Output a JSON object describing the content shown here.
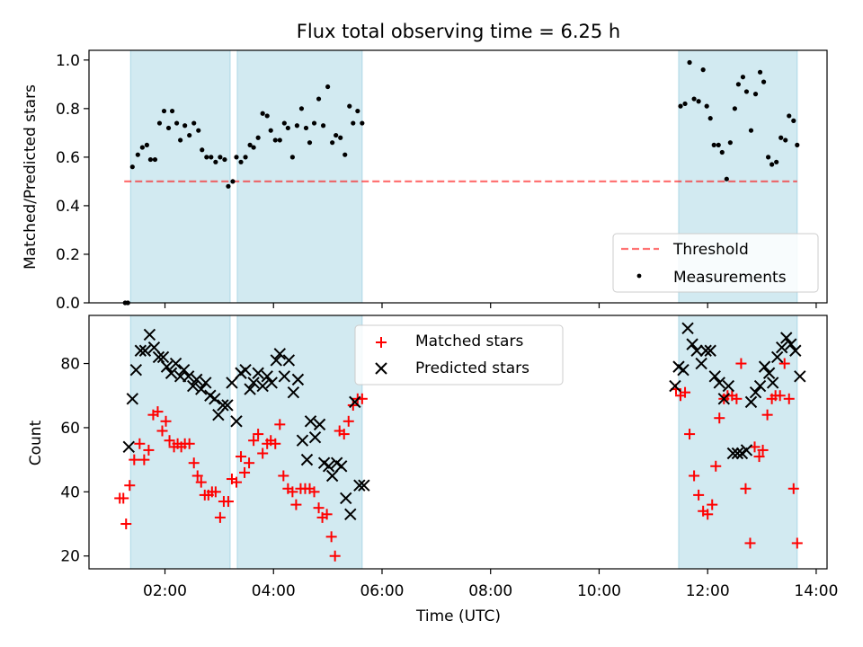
{
  "title": "Flux total observing time = 6.25 h",
  "colors": {
    "band": "#add8e6",
    "threshold": "#ff0000",
    "measurement": "#000000",
    "matched": "#ff0000",
    "predicted": "#000000"
  },
  "chart_data": [
    {
      "type": "scatter",
      "panel": "top",
      "title": "Flux total observing time = 6.25 h",
      "xlabel": "",
      "ylabel": "Matched/Predicted stars",
      "xlim": [
        "00:36",
        "14:12"
      ],
      "ylim": [
        0,
        1.04
      ],
      "x_ticks": [
        "02:00",
        "04:00",
        "06:00",
        "08:00",
        "10:00",
        "12:00",
        "14:00"
      ],
      "y_ticks": [
        "0.0",
        "0.2",
        "0.4",
        "0.6",
        "0.8",
        "1.0"
      ],
      "legend_position": "lower right",
      "bands": [
        [
          "01:22",
          "03:12"
        ],
        [
          "03:20",
          "05:38"
        ],
        [
          "11:28",
          "13:39"
        ]
      ],
      "threshold": {
        "name": "Threshold",
        "value": 0.5,
        "x_range": [
          "01:15",
          "13:39"
        ]
      },
      "series": [
        {
          "name": "Measurements",
          "x": [
            "01:16",
            "01:19",
            "01:24",
            "01:30",
            "01:35",
            "01:40",
            "01:44",
            "01:49",
            "01:54",
            "01:59",
            "02:04",
            "02:08",
            "02:13",
            "02:17",
            "02:22",
            "02:27",
            "02:32",
            "02:37",
            "02:41",
            "02:46",
            "02:51",
            "02:56",
            "03:01",
            "03:06",
            "03:10",
            "03:15",
            "03:19",
            "03:24",
            "03:29",
            "03:34",
            "03:38",
            "03:43",
            "03:48",
            "03:53",
            "03:57",
            "04:02",
            "04:07",
            "04:12",
            "04:16",
            "04:21",
            "04:26",
            "04:31",
            "04:36",
            "04:40",
            "04:45",
            "04:50",
            "04:55",
            "05:00",
            "05:05",
            "05:09",
            "05:14",
            "05:19",
            "05:24",
            "05:28",
            "05:33",
            "05:38",
            "11:30",
            "11:35",
            "11:40",
            "11:45",
            "11:50",
            "11:55",
            "11:59",
            "12:03",
            "12:07",
            "12:12",
            "12:16",
            "12:21",
            "12:25",
            "12:30",
            "12:34",
            "12:39",
            "12:43",
            "12:48",
            "12:53",
            "12:58",
            "13:02",
            "13:07",
            "13:11",
            "13:16",
            "13:21",
            "13:26",
            "13:30",
            "13:35",
            "13:39"
          ],
          "y": [
            0.0,
            0.0,
            0.56,
            0.61,
            0.64,
            0.65,
            0.59,
            0.59,
            0.74,
            0.79,
            0.72,
            0.79,
            0.74,
            0.67,
            0.73,
            0.69,
            0.74,
            0.71,
            0.63,
            0.6,
            0.6,
            0.58,
            0.6,
            0.59,
            0.48,
            0.5,
            0.6,
            0.58,
            0.6,
            0.65,
            0.64,
            0.68,
            0.78,
            0.77,
            0.71,
            0.67,
            0.67,
            0.74,
            0.72,
            0.6,
            0.73,
            0.8,
            0.72,
            0.66,
            0.74,
            0.84,
            0.73,
            0.89,
            0.66,
            0.69,
            0.68,
            0.61,
            0.81,
            0.74,
            0.79,
            0.74,
            0.81,
            0.82,
            0.99,
            0.84,
            0.83,
            0.96,
            0.81,
            0.76,
            0.65,
            0.65,
            0.62,
            0.51,
            0.66,
            0.8,
            0.9,
            0.93,
            0.87,
            0.71,
            0.86,
            0.95,
            0.91,
            0.6,
            0.57,
            0.58,
            0.68,
            0.67,
            0.77,
            0.75,
            0.65
          ]
        }
      ]
    },
    {
      "type": "scatter",
      "panel": "bottom",
      "xlabel": "Time (UTC)",
      "ylabel": "Count",
      "xlim": [
        "00:36",
        "14:12"
      ],
      "ylim": [
        16,
        95
      ],
      "x_ticks": [
        "02:00",
        "04:00",
        "06:00",
        "08:00",
        "10:00",
        "12:00",
        "14:00"
      ],
      "y_ticks": [
        "20",
        "40",
        "60",
        "80"
      ],
      "legend_position": "upper center",
      "bands": [
        [
          "01:22",
          "03:12"
        ],
        [
          "03:20",
          "05:38"
        ],
        [
          "11:28",
          "13:39"
        ]
      ],
      "series": [
        {
          "name": "Matched stars",
          "marker": "plus",
          "x": [
            "01:10",
            "01:14",
            "01:17",
            "01:21",
            "01:26",
            "01:32",
            "01:37",
            "01:42",
            "01:47",
            "01:52",
            "01:57",
            "02:01",
            "02:05",
            "02:10",
            "02:14",
            "02:18",
            "02:22",
            "02:27",
            "02:32",
            "02:36",
            "02:40",
            "02:44",
            "02:48",
            "02:52",
            "02:56",
            "03:01",
            "03:05",
            "03:10",
            "03:14",
            "03:19",
            "03:24",
            "03:28",
            "03:33",
            "03:38",
            "03:43",
            "03:48",
            "03:53",
            "03:57",
            "04:02",
            "04:07",
            "04:11",
            "04:16",
            "04:21",
            "04:25",
            "04:30",
            "04:35",
            "04:40",
            "04:45",
            "04:50",
            "04:54",
            "04:59",
            "05:04",
            "05:08",
            "05:13",
            "05:18",
            "05:23",
            "05:28",
            "05:33",
            "05:38",
            "11:25",
            "11:30",
            "11:35",
            "11:40",
            "11:45",
            "11:50",
            "11:55",
            "12:00",
            "12:05",
            "12:09",
            "12:13",
            "12:18",
            "12:22",
            "12:27",
            "12:32",
            "12:37",
            "12:42",
            "12:47",
            "12:52",
            "12:57",
            "13:01",
            "13:06",
            "13:11",
            "13:15",
            "13:20",
            "13:25",
            "13:30",
            "13:35",
            "13:39"
          ],
          "y": [
            38,
            38,
            30,
            42,
            50,
            55,
            50,
            53,
            64,
            65,
            59,
            62,
            56,
            54,
            55,
            54,
            55,
            55,
            49,
            45,
            43,
            39,
            39,
            40,
            40,
            32,
            37,
            37,
            44,
            43,
            51,
            46,
            49,
            56,
            58,
            52,
            55,
            56,
            55,
            61,
            45,
            41,
            40,
            36,
            41,
            41,
            41,
            40,
            35,
            32,
            33,
            26,
            20,
            59,
            58,
            62,
            67,
            69,
            69,
            72,
            70,
            71,
            58,
            45,
            39,
            34,
            33,
            36,
            48,
            63,
            69,
            70,
            70,
            69,
            80,
            41,
            24,
            54,
            51,
            53,
            64,
            69,
            70,
            70,
            80,
            69,
            41,
            24
          ]
        },
        {
          "name": "Predicted stars",
          "marker": "x",
          "x": [
            "01:20",
            "01:24",
            "01:28",
            "01:33",
            "01:38",
            "01:43",
            "01:48",
            "01:53",
            "01:58",
            "02:02",
            "02:07",
            "02:12",
            "02:17",
            "02:21",
            "02:26",
            "02:31",
            "02:35",
            "02:40",
            "02:45",
            "02:50",
            "02:55",
            "02:59",
            "03:04",
            "03:09",
            "03:14",
            "03:19",
            "03:24",
            "03:29",
            "03:34",
            "03:38",
            "03:43",
            "03:48",
            "03:53",
            "03:58",
            "04:03",
            "04:07",
            "04:12",
            "04:17",
            "04:22",
            "04:27",
            "04:32",
            "04:37",
            "04:41",
            "04:46",
            "04:51",
            "04:56",
            "05:01",
            "05:05",
            "05:10",
            "05:15",
            "05:20",
            "05:25",
            "05:30",
            "05:35",
            "05:40",
            "11:24",
            "11:28",
            "11:33",
            "11:38",
            "11:43",
            "11:48",
            "11:53",
            "11:58",
            "12:03",
            "12:08",
            "12:13",
            "12:18",
            "12:23",
            "12:28",
            "12:33",
            "12:38",
            "12:43",
            "12:48",
            "12:53",
            "12:58",
            "13:03",
            "13:08",
            "13:12",
            "13:17",
            "13:22",
            "13:27",
            "13:32",
            "13:37",
            "13:42"
          ],
          "y": [
            54,
            69,
            78,
            84,
            84,
            89,
            85,
            82,
            82,
            79,
            77,
            80,
            76,
            78,
            76,
            73,
            75,
            72,
            74,
            70,
            69,
            64,
            67,
            67,
            74,
            62,
            77,
            78,
            72,
            74,
            77,
            73,
            76,
            74,
            81,
            83,
            76,
            81,
            71,
            75,
            56,
            50,
            62,
            57,
            61,
            49,
            48,
            45,
            49,
            48,
            38,
            33,
            68,
            42,
            42,
            73,
            79,
            78,
            91,
            86,
            84,
            80,
            84,
            84,
            76,
            74,
            69,
            73,
            52,
            52,
            52,
            53,
            68,
            71,
            73,
            79,
            77,
            74,
            82,
            85,
            88,
            86,
            84,
            76
          ]
        }
      ]
    }
  ]
}
